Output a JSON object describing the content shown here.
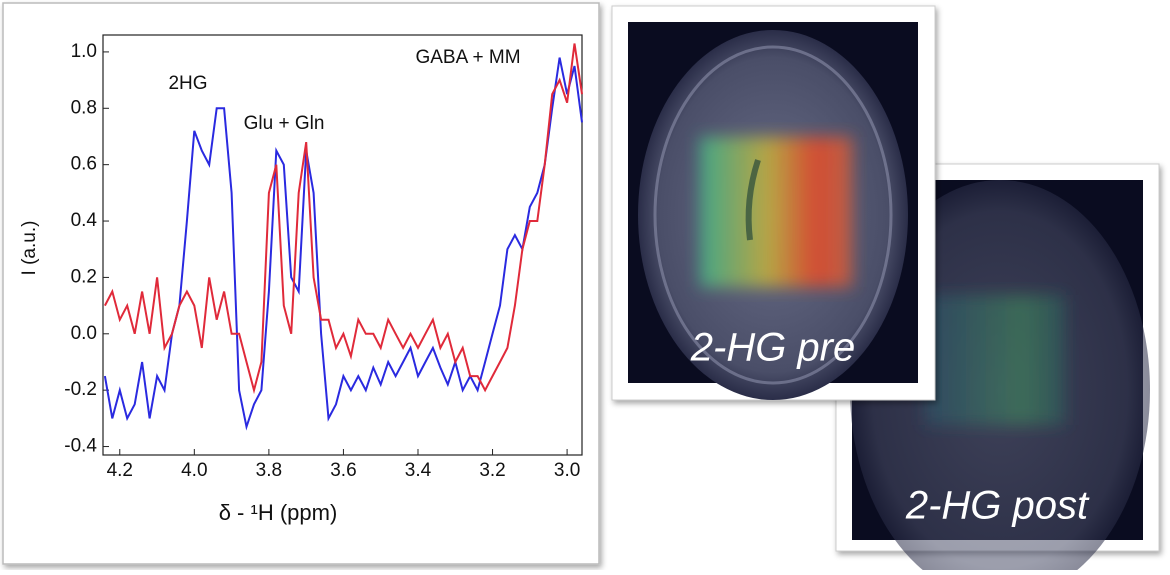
{
  "chart_data": {
    "type": "line",
    "xlabel": "δ - ¹H (ppm)",
    "ylabel": "I (a.u.)",
    "annotations": [
      "2HG",
      "Glu + Gln",
      "GABA + MM"
    ],
    "xlim": [
      4.245,
      2.96
    ],
    "ylim": [
      -0.43,
      1.06
    ],
    "xticks": [
      4.2,
      {
        "value": 4,
        "label": "4.0"
      },
      3.8,
      3.6,
      3.4,
      3.2,
      {
        "value": 3,
        "label": "3.0"
      }
    ],
    "yticks": [
      -0.4,
      -0.2,
      {
        "value": 0,
        "label": "0.0"
      },
      0.2,
      0.4,
      0.6,
      0.8,
      {
        "value": 1,
        "label": "1.0"
      }
    ],
    "x": [
      4.24,
      4.22,
      4.2,
      4.18,
      4.16,
      4.14,
      4.12,
      4.1,
      4.08,
      4.06,
      4.04,
      4.02,
      4.0,
      3.98,
      3.96,
      3.94,
      3.92,
      3.9,
      3.88,
      3.86,
      3.84,
      3.82,
      3.8,
      3.78,
      3.76,
      3.74,
      3.72,
      3.7,
      3.68,
      3.66,
      3.64,
      3.62,
      3.6,
      3.58,
      3.56,
      3.54,
      3.52,
      3.5,
      3.48,
      3.46,
      3.44,
      3.42,
      3.4,
      3.38,
      3.36,
      3.34,
      3.32,
      3.3,
      3.28,
      3.26,
      3.24,
      3.22,
      3.2,
      3.18,
      3.16,
      3.14,
      3.12,
      3.1,
      3.08,
      3.06,
      3.04,
      3.02,
      3.0,
      2.98,
      2.96
    ],
    "series": [
      {
        "color": "#2a2ae0",
        "values": [
          -0.15,
          -0.3,
          -0.2,
          -0.3,
          -0.25,
          -0.1,
          -0.3,
          -0.15,
          -0.2,
          0.0,
          0.1,
          0.4,
          0.72,
          0.65,
          0.6,
          0.8,
          0.8,
          0.5,
          -0.2,
          -0.33,
          -0.25,
          -0.2,
          0.15,
          0.65,
          0.6,
          0.2,
          0.15,
          0.65,
          0.5,
          0.0,
          -0.3,
          -0.25,
          -0.15,
          -0.2,
          -0.15,
          -0.2,
          -0.12,
          -0.18,
          -0.1,
          -0.15,
          -0.1,
          -0.05,
          -0.15,
          -0.1,
          -0.05,
          -0.12,
          -0.18,
          -0.1,
          -0.2,
          -0.15,
          -0.2,
          -0.1,
          0.0,
          0.1,
          0.3,
          0.35,
          0.3,
          0.45,
          0.5,
          0.6,
          0.8,
          0.98,
          0.85,
          0.95,
          0.75
        ]
      },
      {
        "color": "#e02a3a",
        "values": [
          0.1,
          0.15,
          0.05,
          0.1,
          0.0,
          0.15,
          0.0,
          0.2,
          -0.05,
          0.0,
          0.1,
          0.15,
          0.1,
          -0.05,
          0.2,
          0.05,
          0.15,
          0.0,
          0.0,
          -0.1,
          -0.2,
          -0.1,
          0.5,
          0.6,
          0.1,
          0.0,
          0.5,
          0.68,
          0.2,
          0.05,
          0.05,
          -0.05,
          0.0,
          -0.08,
          0.05,
          0.0,
          0.0,
          -0.05,
          0.05,
          0.0,
          -0.05,
          0.0,
          -0.05,
          0.0,
          0.05,
          -0.05,
          0.0,
          -0.1,
          -0.05,
          -0.15,
          -0.15,
          -0.2,
          -0.15,
          -0.1,
          -0.05,
          0.1,
          0.3,
          0.4,
          0.4,
          0.6,
          0.85,
          0.9,
          0.82,
          1.03,
          0.85
        ]
      }
    ]
  },
  "images": [
    {
      "label": "2-HG pre"
    },
    {
      "label": "2-HG post"
    }
  ]
}
